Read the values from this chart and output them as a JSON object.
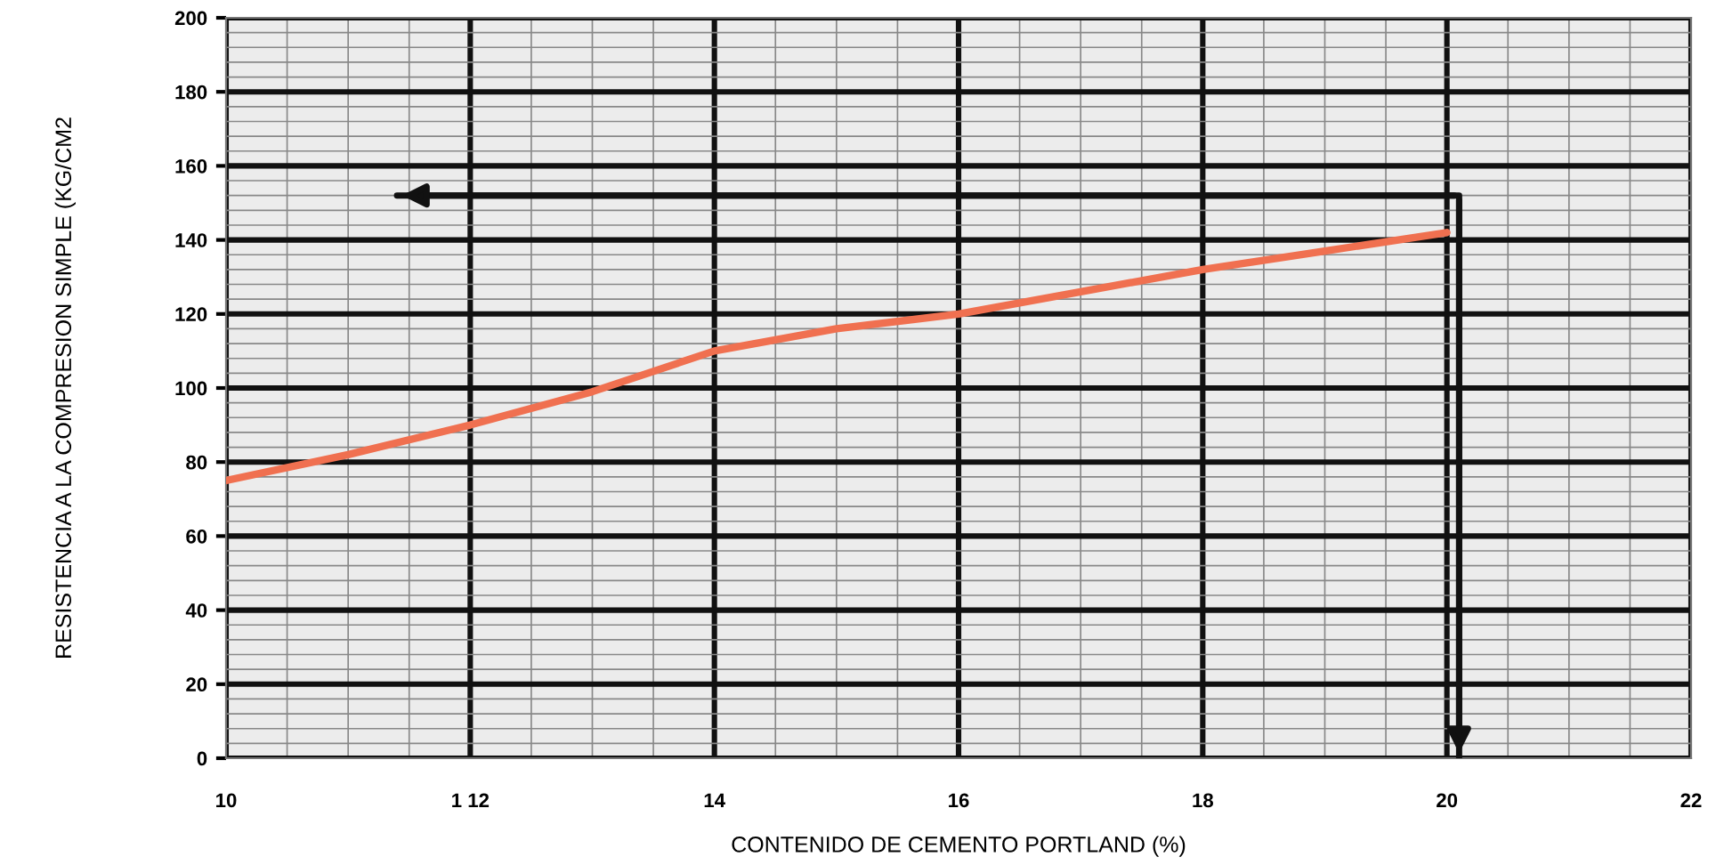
{
  "chart_data": {
    "type": "line",
    "xlabel": "CONTENIDO DE CEMENTO PORTLAND (%)",
    "ylabel": "RESISTENCIA A LA COMPRESION SIMPLE (KG/CM2",
    "xlim": [
      10,
      22
    ],
    "xticks": [
      10,
      {
        "value": 12,
        "label": "1 12"
      },
      14,
      16,
      18,
      20,
      22
    ],
    "ylim": [
      0,
      200
    ],
    "yticks": [
      0,
      20,
      40,
      60,
      80,
      100,
      120,
      140,
      160,
      180,
      200
    ],
    "grid": true,
    "series": [
      {
        "color": "#f07050",
        "x": [
          10,
          11,
          12,
          13,
          14,
          15,
          16,
          17,
          18,
          19,
          20
        ],
        "values": [
          75,
          82,
          90,
          99,
          110,
          116,
          120,
          126,
          132,
          137,
          142
        ]
      },
      {
        "color": "#111111",
        "x": [
          11.4,
          20.1,
          20.1
        ],
        "values": [
          152,
          152,
          0
        ]
      }
    ]
  }
}
